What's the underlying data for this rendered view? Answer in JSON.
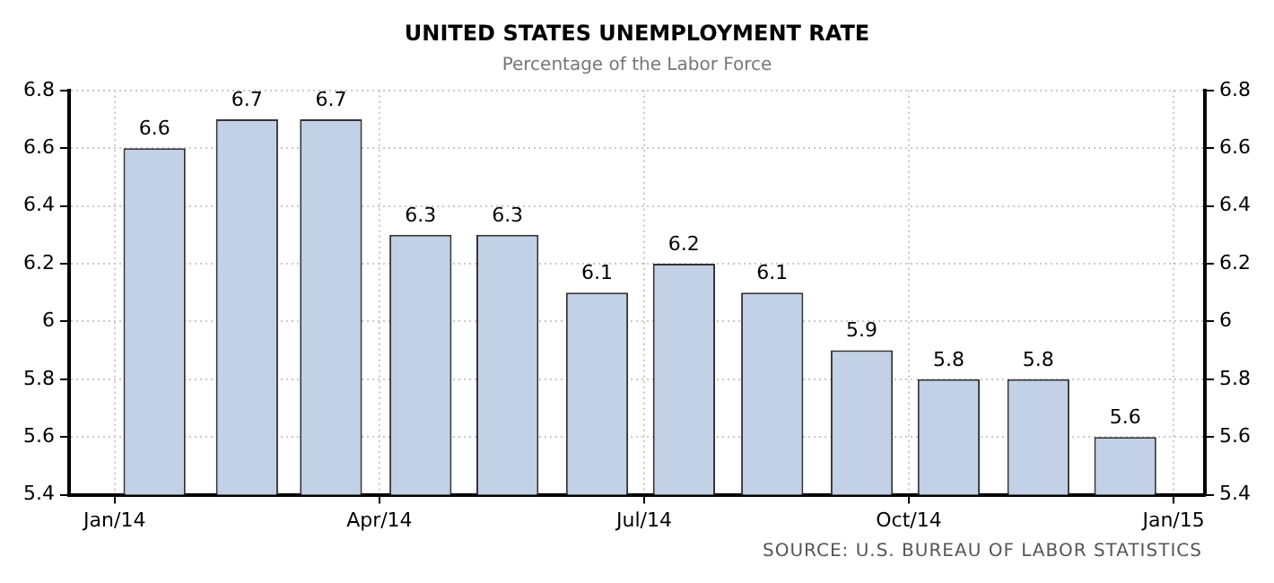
{
  "chart_data": {
    "type": "bar",
    "title": "UNITED STATES UNEMPLOYMENT RATE",
    "subtitle": "Percentage of the Labor Force",
    "x": [
      "2014-01-15",
      "2014-02-15",
      "2014-03-15",
      "2014-04-15",
      "2014-05-15",
      "2014-06-15",
      "2014-07-15",
      "2014-08-15",
      "2014-09-15",
      "2014-10-15",
      "2014-11-15",
      "2014-12-15"
    ],
    "values": [
      6.6,
      6.7,
      6.7,
      6.3,
      6.3,
      6.1,
      6.2,
      6.1,
      5.9,
      5.8,
      5.8,
      5.6
    ],
    "color": "#c3d1e6",
    "xlim": [
      "2013-12-16",
      "2015-01-12"
    ],
    "xticks": [
      {
        "value": "2014-01-01",
        "label": "Jan/14"
      },
      {
        "value": "2014-04-01",
        "label": "Apr/14"
      },
      {
        "value": "2014-07-01",
        "label": "Jul/14"
      },
      {
        "value": "2014-10-01",
        "label": "Oct/14"
      },
      {
        "value": "2015-01-01",
        "label": "Jan/15"
      }
    ],
    "ylim": [
      5.4,
      6.8
    ],
    "yticks": [
      5.4,
      5.6,
      5.8,
      6,
      6.2,
      6.4,
      6.6,
      6.8
    ],
    "y2lim": [
      5.4,
      6.8
    ],
    "y2ticks": [
      5.4,
      5.6,
      5.8,
      6,
      6.2,
      6.4,
      6.6,
      6.8
    ],
    "grid": true,
    "data_labels": true,
    "legend": false,
    "annotations": [
      "SOURCE: U.S. BUREAU OF LABOR STATISTICS"
    ]
  }
}
